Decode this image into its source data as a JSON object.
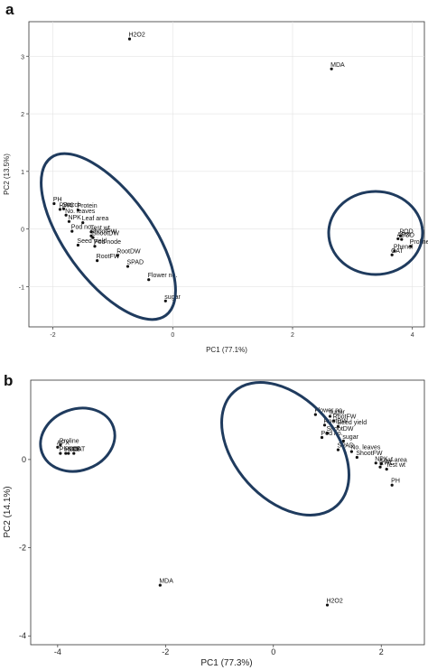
{
  "panels": [
    {
      "label": "a",
      "chart_data": {
        "type": "scatter",
        "xlabel": "PC1 (77.1%)",
        "ylabel": "PC2 (13.5%)",
        "xlim": [
          -2.4,
          4.2
        ],
        "ylim": [
          -1.7,
          3.6
        ],
        "xticks": [
          -2,
          0,
          2,
          4
        ],
        "yticks": [
          -1,
          0,
          1,
          2,
          3
        ],
        "grid": true,
        "points": [
          {
            "label": "H2O2",
            "x": -0.72,
            "y": 3.3
          },
          {
            "label": "MDA",
            "x": 2.65,
            "y": 2.78
          },
          {
            "label": "PH",
            "x": -1.98,
            "y": 0.44
          },
          {
            "label": "Starch",
            "x": -1.82,
            "y": 0.35
          },
          {
            "label": "RWC",
            "x": -1.88,
            "y": 0.34
          },
          {
            "label": "Protein",
            "x": -1.58,
            "y": 0.33
          },
          {
            "label": "No. leaves",
            "x": -1.78,
            "y": 0.24
          },
          {
            "label": "NPK",
            "x": -1.73,
            "y": 0.13
          },
          {
            "label": "Leaf area",
            "x": -1.5,
            "y": 0.11
          },
          {
            "label": "Pod no.",
            "x": -1.68,
            "y": -0.04
          },
          {
            "label": "Test wt",
            "x": -1.36,
            "y": -0.05
          },
          {
            "label": "ShootFW",
            "x": -1.36,
            "y": -0.12
          },
          {
            "label": "ShootDW",
            "x": -1.33,
            "y": -0.15
          },
          {
            "label": "Seed yield",
            "x": -1.58,
            "y": -0.28
          },
          {
            "label": "Pod node",
            "x": -1.3,
            "y": -0.3
          },
          {
            "label": "RootDW",
            "x": -0.92,
            "y": -0.46
          },
          {
            "label": "RootFW",
            "x": -1.26,
            "y": -0.55
          },
          {
            "label": "SPAD",
            "x": -0.75,
            "y": -0.65
          },
          {
            "label": "Flower no.",
            "x": -0.4,
            "y": -0.88
          },
          {
            "label": "sugar",
            "x": -0.12,
            "y": -1.25
          },
          {
            "label": "POD",
            "x": 3.8,
            "y": -0.12
          },
          {
            "label": "APX",
            "x": 3.76,
            "y": -0.17
          },
          {
            "label": "SOD",
            "x": 3.82,
            "y": -0.18
          },
          {
            "label": "Proline",
            "x": 3.97,
            "y": -0.3
          },
          {
            "label": "Phenol",
            "x": 3.7,
            "y": -0.38
          },
          {
            "label": "CAT",
            "x": 3.66,
            "y": -0.45
          }
        ]
      }
    },
    {
      "label": "b",
      "chart_data": {
        "type": "scatter",
        "xlabel": "PC1 (77.3%)",
        "ylabel": "PC2 (14.1%)",
        "xlim": [
          -4.5,
          2.8
        ],
        "ylim": [
          -4.2,
          1.8
        ],
        "xticks": [
          -4,
          -2,
          0,
          2
        ],
        "yticks": [
          -4,
          -2,
          0
        ],
        "grid": false,
        "points": [
          {
            "label": "Proline",
            "x": -3.95,
            "y": 0.33
          },
          {
            "label": "APX",
            "x": -4.0,
            "y": 0.28
          },
          {
            "label": "POD",
            "x": -3.85,
            "y": 0.14
          },
          {
            "label": "SOD",
            "x": -3.8,
            "y": 0.14
          },
          {
            "label": "Phenol",
            "x": -3.95,
            "y": 0.14
          },
          {
            "label": "CAT",
            "x": -3.7,
            "y": 0.14
          },
          {
            "label": "MDA",
            "x": -2.1,
            "y": -2.85
          },
          {
            "label": "H2O2",
            "x": 1.0,
            "y": -3.3
          },
          {
            "label": "Flower no.",
            "x": 0.78,
            "y": 1.02
          },
          {
            "label": "sugar",
            "x": 1.05,
            "y": 0.98
          },
          {
            "label": "RootFW",
            "x": 1.12,
            "y": 0.88
          },
          {
            "label": "RootDW",
            "x": 0.95,
            "y": 0.78
          },
          {
            "label": "Seed yield",
            "x": 1.2,
            "y": 0.75
          },
          {
            "label": "ShootDW",
            "x": 1.0,
            "y": 0.6
          },
          {
            "label": "Pod no.",
            "x": 0.9,
            "y": 0.5
          },
          {
            "label": "sugar",
            "x": 1.3,
            "y": 0.42
          },
          {
            "label": "SPAD",
            "x": 1.2,
            "y": 0.22
          },
          {
            "label": "No. leaves",
            "x": 1.45,
            "y": 0.18
          },
          {
            "label": "ShootFW",
            "x": 1.55,
            "y": 0.05
          },
          {
            "label": "NPK",
            "x": 1.9,
            "y": -0.08
          },
          {
            "label": "Leaf area",
            "x": 2.0,
            "y": -0.1
          },
          {
            "label": "RWC",
            "x": 1.98,
            "y": -0.17
          },
          {
            "label": "Test wt",
            "x": 2.1,
            "y": -0.22
          },
          {
            "label": "PH",
            "x": 2.2,
            "y": -0.58
          }
        ]
      }
    }
  ]
}
